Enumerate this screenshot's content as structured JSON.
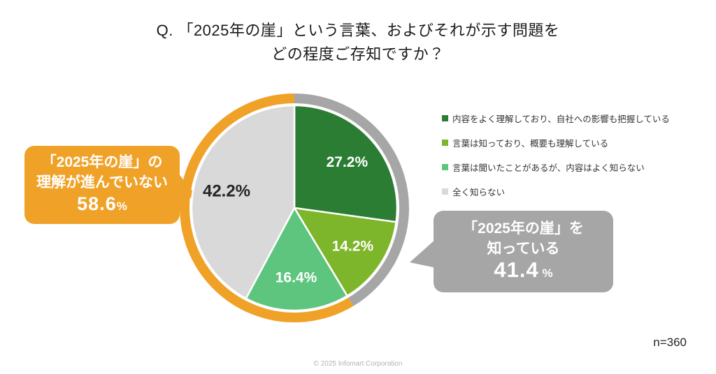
{
  "title": {
    "line1": "Q. 「2025年の崖」という言葉、およびそれが示す問題を",
    "line2": "どの程度ご存知ですか？"
  },
  "chart_data": {
    "type": "pie",
    "title": "「2025年の崖」という言葉、およびそれが示す問題をどの程度ご存知ですか？",
    "unit": "%",
    "start_angle_deg": 0,
    "direction": "clockwise",
    "sample_size": 360,
    "slices": [
      {
        "label": "内容をよく理解しており、自社への影響も把握している",
        "value": 27.2,
        "display": "27.2%",
        "color": "#2B7D33",
        "label_color": "#FFFFFF"
      },
      {
        "label": "言葉は知っており、概要も理解している",
        "value": 14.2,
        "display": "14.2%",
        "color": "#7DB52B",
        "label_color": "#FFFFFF"
      },
      {
        "label": "言葉は聞いたことがあるが、内容はよく知らない",
        "value": 16.4,
        "display": "16.4%",
        "color": "#5EC57E",
        "label_color": "#FFFFFF"
      },
      {
        "label": "全く知らない",
        "value": 42.2,
        "display": "42.2%",
        "color": "#D9D9D9",
        "label_color": "#262626"
      }
    ],
    "outer_ring": [
      {
        "name": "knows-group",
        "from_pct": 0,
        "to_pct": 41.4,
        "color": "#A6A6A6"
      },
      {
        "name": "does-not-understand-group",
        "from_pct": 41.4,
        "to_pct": 100,
        "color": "#F0A228"
      }
    ],
    "legend_position": "right"
  },
  "callouts": {
    "left": {
      "line1": "「2025年の崖」の",
      "line2": "理解が進んでいない",
      "value": "58.6",
      "unit": "%",
      "color": "#F0A228"
    },
    "right": {
      "line1": "「2025年の崖」を",
      "line2": "知っている",
      "value": "41.4",
      "unit": "%",
      "color": "#A6A6A6"
    }
  },
  "footer": {
    "sample_size": "n=360",
    "copyright": "© 2025 Infomart Corporation"
  }
}
